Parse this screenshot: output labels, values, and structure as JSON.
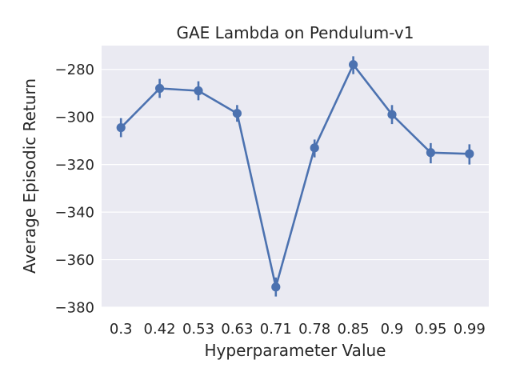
{
  "chart_data": {
    "type": "line",
    "title": "GAE Lambda on Pendulum-v1",
    "xlabel": "Hyperparameter Value",
    "ylabel": "Average Episodic Return",
    "categories": [
      "0.3",
      "0.42",
      "0.53",
      "0.63",
      "0.71",
      "0.78",
      "0.85",
      "0.9",
      "0.95",
      "0.99"
    ],
    "series": [
      {
        "values": [
          -304.5,
          -288,
          -289,
          -298.5,
          -371.5,
          -313,
          -278,
          -299,
          -315,
          -315.5
        ],
        "ci_low": [
          -308.5,
          -292,
          -293,
          -302,
          -375.5,
          -317,
          -282,
          -303,
          -319.5,
          -320
        ],
        "ci_high": [
          -300.5,
          -284,
          -285,
          -295,
          -367.5,
          -309.5,
          -274.5,
          -295,
          -311,
          -311.5
        ]
      }
    ],
    "ylim": [
      -380,
      -270
    ],
    "yticks": [
      -280,
      -300,
      -320,
      -340,
      -360,
      -380
    ],
    "ytick_labels": [
      "−280",
      "−300",
      "−320",
      "−340",
      "−360",
      "−380"
    ],
    "grid": true,
    "colors": {
      "background": "#eaeaf2",
      "series": "#4c72b0",
      "grid": "#ffffff",
      "text": "#262626"
    }
  }
}
